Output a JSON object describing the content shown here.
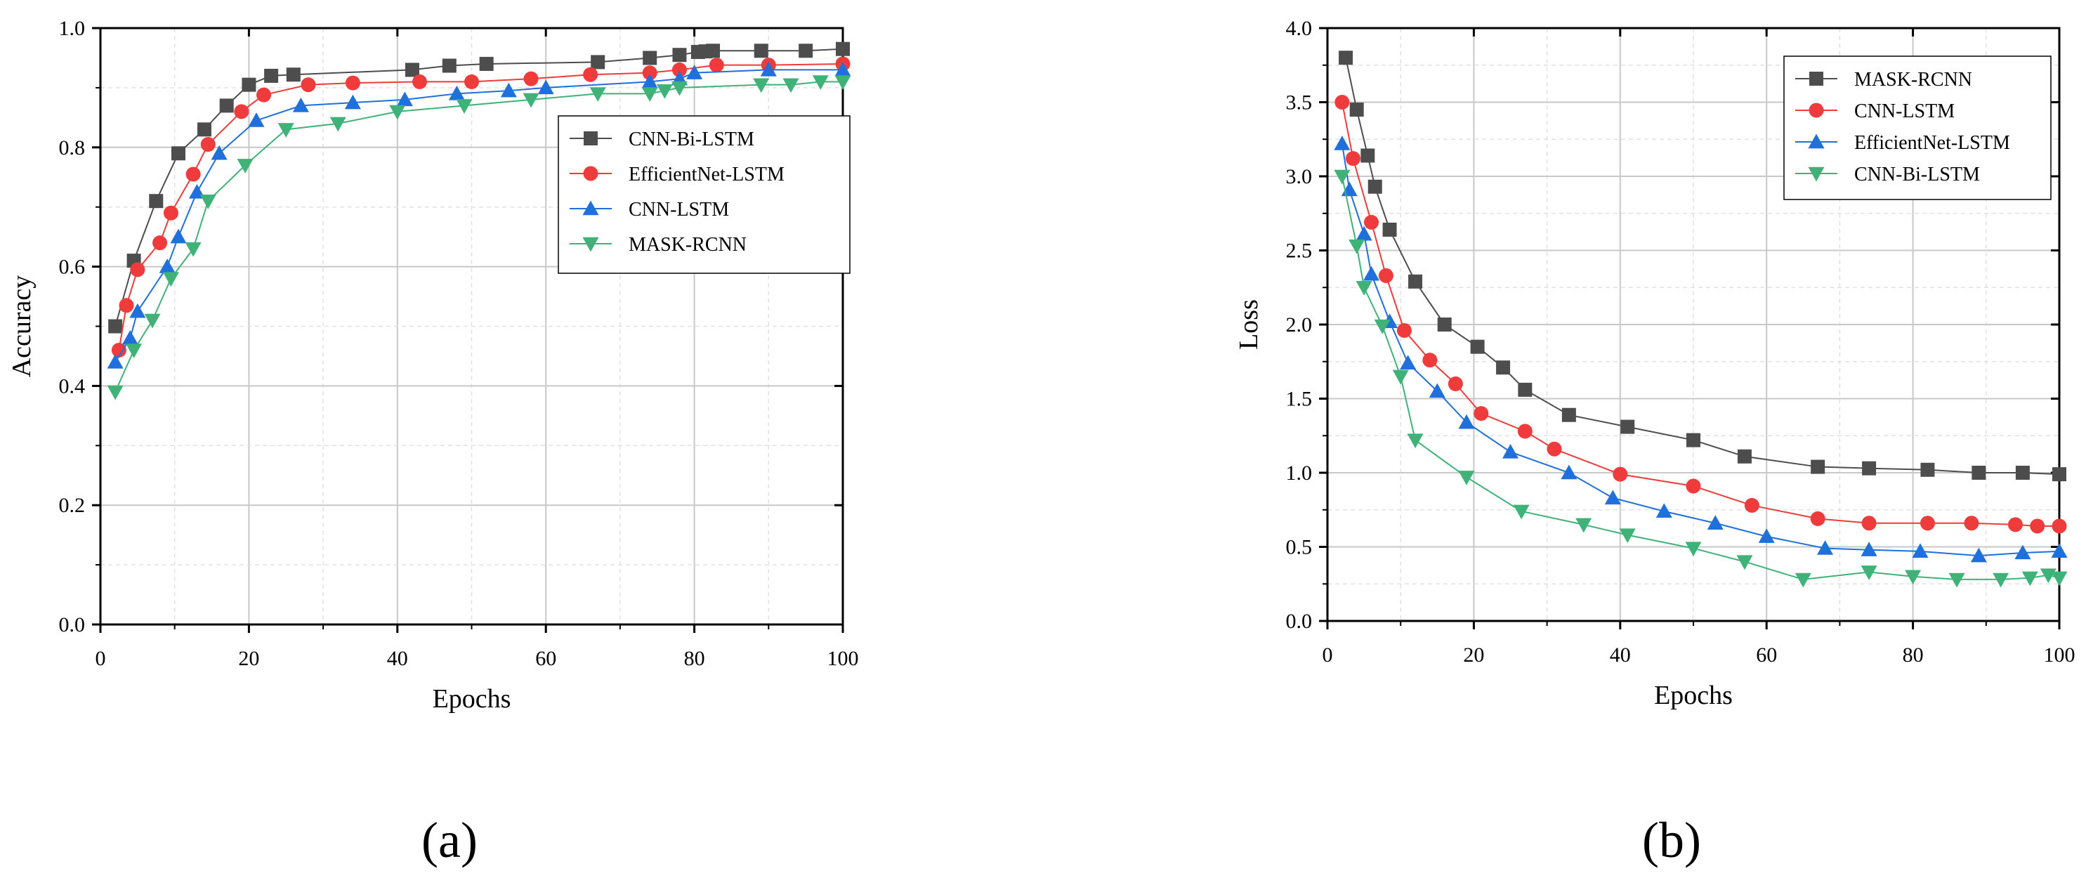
{
  "panel_labels": {
    "a": "(a)",
    "b": "(b)"
  },
  "colors": {
    "gray": "#4d4d4d",
    "red": "#ef3b3b",
    "blue": "#1f6fdc",
    "green": "#3fb277"
  },
  "chart_data": [
    {
      "type": "line",
      "panel": "(a)",
      "title": "",
      "xlabel": "Epochs",
      "ylabel": "Accuracy",
      "xlim": [
        0,
        100
      ],
      "ylim": [
        0,
        1.0
      ],
      "xticks": [
        0,
        20,
        40,
        60,
        80,
        100
      ],
      "yticks": [
        0.0,
        0.2,
        0.4,
        0.6,
        0.8,
        1.0
      ],
      "ytick_labels": [
        "0.0",
        "0.2",
        "0.4",
        "0.6",
        "0.8",
        "1.0"
      ],
      "grid": true,
      "legend_position": "center-right",
      "series": [
        {
          "name": "CNN-Bi-LSTM",
          "color": "#4d4d4d",
          "marker": "square",
          "x": [
            2,
            4.5,
            7.5,
            10.5,
            14,
            17,
            20,
            23,
            26,
            42,
            47,
            52,
            67,
            74,
            78,
            80.5,
            81.5,
            82.5,
            89,
            95,
            100
          ],
          "y": [
            0.5,
            0.61,
            0.71,
            0.79,
            0.83,
            0.87,
            0.905,
            0.92,
            0.922,
            0.93,
            0.937,
            0.94,
            0.943,
            0.95,
            0.955,
            0.96,
            0.961,
            0.962,
            0.962,
            0.962,
            0.965
          ]
        },
        {
          "name": "EfficientNet-LSTM",
          "color": "#ef3b3b",
          "marker": "circle",
          "x": [
            2.5,
            3.5,
            5,
            8,
            9.5,
            12.5,
            14.5,
            19,
            22,
            28,
            34,
            43,
            50,
            58,
            66,
            74,
            78,
            83,
            90,
            100
          ],
          "y": [
            0.46,
            0.535,
            0.595,
            0.64,
            0.69,
            0.755,
            0.805,
            0.86,
            0.888,
            0.905,
            0.908,
            0.91,
            0.91,
            0.915,
            0.922,
            0.925,
            0.93,
            0.938,
            0.938,
            0.94
          ]
        },
        {
          "name": "CNN-LSTM",
          "color": "#1f6fdc",
          "marker": "triangle-up",
          "x": [
            2,
            4,
            5,
            9,
            10.5,
            13,
            16,
            21,
            27,
            34,
            41,
            48,
            55,
            60,
            74,
            78,
            80,
            90,
            100
          ],
          "y": [
            0.44,
            0.48,
            0.525,
            0.6,
            0.65,
            0.725,
            0.79,
            0.845,
            0.87,
            0.875,
            0.88,
            0.89,
            0.895,
            0.9,
            0.91,
            0.915,
            0.925,
            0.93,
            0.93
          ]
        },
        {
          "name": "MASK-RCNN",
          "color": "#3fb277",
          "marker": "triangle-down",
          "x": [
            2,
            4.5,
            7,
            9.5,
            12.5,
            14.5,
            19.5,
            25,
            32,
            40,
            49,
            58,
            67,
            74,
            76,
            78,
            89,
            93,
            97,
            100
          ],
          "y": [
            0.39,
            0.46,
            0.51,
            0.58,
            0.63,
            0.71,
            0.77,
            0.83,
            0.84,
            0.86,
            0.87,
            0.88,
            0.89,
            0.89,
            0.895,
            0.9,
            0.905,
            0.905,
            0.91,
            0.91
          ]
        }
      ]
    },
    {
      "type": "line",
      "panel": "(b)",
      "title": "",
      "xlabel": "Epochs",
      "ylabel": "Loss",
      "xlim": [
        0,
        100
      ],
      "ylim": [
        0,
        4.0
      ],
      "xticks": [
        0,
        20,
        40,
        60,
        80,
        100
      ],
      "yticks": [
        0.0,
        0.5,
        1.0,
        1.5,
        2.0,
        2.5,
        3.0,
        3.5,
        4.0
      ],
      "ytick_labels": [
        "0.0",
        "0.5",
        "1.0",
        "1.5",
        "2.0",
        "2.5",
        "3.0",
        "3.5",
        "4.0"
      ],
      "grid": true,
      "legend_position": "top-right",
      "series": [
        {
          "name": "MASK-RCNN",
          "color": "#4d4d4d",
          "marker": "square",
          "x": [
            2.5,
            4,
            5.5,
            6.5,
            8.5,
            12,
            16,
            20.5,
            24,
            27,
            33,
            41,
            50,
            57,
            67,
            74,
            82,
            89,
            95,
            100
          ],
          "y": [
            3.8,
            3.45,
            3.14,
            2.93,
            2.64,
            2.29,
            2.0,
            1.85,
            1.71,
            1.56,
            1.39,
            1.31,
            1.22,
            1.11,
            1.04,
            1.03,
            1.02,
            1.0,
            1.0,
            0.99
          ]
        },
        {
          "name": "CNN-LSTM",
          "color": "#ef3b3b",
          "marker": "circle",
          "x": [
            2,
            3.5,
            6,
            8,
            10.5,
            14,
            17.5,
            21,
            27,
            31,
            40,
            50,
            58,
            67,
            74,
            82,
            88,
            94,
            97,
            100
          ],
          "y": [
            3.5,
            3.12,
            2.69,
            2.33,
            1.96,
            1.76,
            1.6,
            1.4,
            1.28,
            1.16,
            0.99,
            0.91,
            0.78,
            0.69,
            0.66,
            0.66,
            0.66,
            0.65,
            0.64,
            0.64
          ]
        },
        {
          "name": "EfficientNet-LSTM",
          "color": "#1f6fdc",
          "marker": "triangle-up",
          "x": [
            2,
            3,
            5,
            6,
            8.5,
            11,
            15,
            19,
            25,
            33,
            39,
            46,
            53,
            60,
            68,
            74,
            81,
            89,
            95,
            100
          ],
          "y": [
            3.22,
            2.91,
            2.61,
            2.34,
            2.02,
            1.74,
            1.55,
            1.34,
            1.14,
            1.0,
            0.83,
            0.74,
            0.66,
            0.57,
            0.49,
            0.48,
            0.47,
            0.44,
            0.46,
            0.47
          ]
        },
        {
          "name": "CNN-Bi-LSTM",
          "color": "#3fb277",
          "marker": "triangle-down",
          "x": [
            2,
            4,
            5,
            7.5,
            10,
            12,
            19,
            26.5,
            35,
            41,
            50,
            57,
            65,
            74,
            80,
            86,
            92,
            96,
            98.5,
            100
          ],
          "y": [
            3.0,
            2.53,
            2.25,
            1.99,
            1.65,
            1.22,
            0.97,
            0.74,
            0.65,
            0.58,
            0.49,
            0.4,
            0.28,
            0.33,
            0.3,
            0.28,
            0.28,
            0.29,
            0.31,
            0.29
          ]
        }
      ]
    }
  ]
}
